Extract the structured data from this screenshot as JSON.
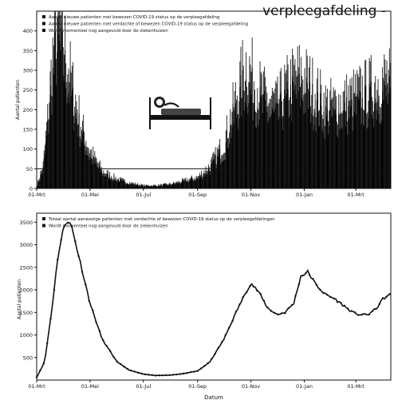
{
  "header": {
    "title": "verpleegafdeling -"
  },
  "chart_data": [
    {
      "type": "bar",
      "ylabel": "Aantal patienten",
      "xlabel": "",
      "ylim": [
        0,
        450
      ],
      "yticks": [
        0,
        50,
        100,
        150,
        200,
        250,
        300,
        350,
        400
      ],
      "xticks": [
        "01-Mrt",
        "01-Mei",
        "01-Jul",
        "01-Sep",
        "01-Nov",
        "01-Jan",
        "01-Mrt"
      ],
      "x_start": "2020-03-01",
      "x_end": "2021-04-10",
      "legend_position": "top-left",
      "legend": [
        "Aantal nieuwe patienten met bewezen COVID-19 status op de verpleegafdeling",
        "Aantal nieuwe patienten met verdachte of bewezen COVID-19 status op de verpleegafdeling",
        "Wordt momenteel nog aangevuld door de ziekenhuizen"
      ],
      "reference_line": {
        "y": 50
      },
      "series": [
        {
          "name": "Aantal nieuwe patienten met verdachte of bewezen COVID-19 status op de verpleegafdeling",
          "anchor_dates": [
            "2020-03-01",
            "2020-03-08",
            "2020-03-13",
            "2020-03-18",
            "2020-03-22",
            "2020-03-26",
            "2020-03-30",
            "2020-04-05",
            "2020-04-12",
            "2020-04-20",
            "2020-04-30",
            "2020-05-15",
            "2020-06-01",
            "2020-06-15",
            "2020-07-01",
            "2020-07-15",
            "2020-08-01",
            "2020-08-15",
            "2020-09-01",
            "2020-09-15",
            "2020-10-01",
            "2020-10-10",
            "2020-10-20",
            "2020-10-25",
            "2020-11-01",
            "2020-11-10",
            "2020-11-20",
            "2020-12-01",
            "2020-12-10",
            "2020-12-20",
            "2020-12-28",
            "2021-01-05",
            "2021-01-15",
            "2021-01-25",
            "2021-02-05",
            "2021-02-15",
            "2021-02-25",
            "2021-03-05",
            "2021-03-15",
            "2021-03-25",
            "2021-04-05",
            "2021-04-10"
          ],
          "anchor_values": [
            10,
            60,
            180,
            320,
            420,
            440,
            400,
            330,
            250,
            170,
            100,
            45,
            25,
            15,
            8,
            8,
            12,
            20,
            30,
            60,
            120,
            200,
            280,
            330,
            300,
            260,
            230,
            220,
            260,
            290,
            300,
            280,
            250,
            220,
            220,
            230,
            240,
            250,
            260,
            280,
            290,
            270
          ]
        },
        {
          "name": "Aantal nieuwe patienten met bewezen COVID-19 status op de verpleegafdeling",
          "note": "approximately 0.8 of the suspected-or-confirmed series"
        }
      ]
    },
    {
      "type": "line",
      "ylabel": "Aantal patienten",
      "xlabel": "Datum",
      "ylim": [
        0,
        3700
      ],
      "yticks": [
        500,
        1000,
        1500,
        2000,
        2500,
        3000,
        3500
      ],
      "xticks": [
        "01-Mrt",
        "01-Mei",
        "01-Jul",
        "01-Sep",
        "01-Nov",
        "01-Jan",
        "01-Mrt"
      ],
      "x_start": "2020-03-01",
      "x_end": "2021-04-10",
      "legend_position": "top-left",
      "legend": [
        "Totaal aantal aanwezige patienten met verdachte of bewezen COVID-19 status op de verpleegafdelingen",
        "Wordt momenteel nog aangevuld door de ziekenhuizen"
      ],
      "series": [
        {
          "name": "Totaal aantal aanwezige patienten met verdachte of bewezen COVID-19 status op de verpleegafdelingen",
          "dates": [
            "2020-03-01",
            "2020-03-10",
            "2020-03-18",
            "2020-03-25",
            "2020-04-01",
            "2020-04-05",
            "2020-04-10",
            "2020-04-20",
            "2020-05-01",
            "2020-05-15",
            "2020-06-01",
            "2020-06-15",
            "2020-07-01",
            "2020-07-15",
            "2020-08-01",
            "2020-08-15",
            "2020-09-01",
            "2020-09-15",
            "2020-10-01",
            "2020-10-15",
            "2020-10-25",
            "2020-11-01",
            "2020-11-10",
            "2020-11-20",
            "2020-12-01",
            "2020-12-10",
            "2020-12-20",
            "2020-12-28",
            "2021-01-05",
            "2021-01-15",
            "2021-01-25",
            "2021-02-05",
            "2021-02-15",
            "2021-02-25",
            "2021-03-05",
            "2021-03-15",
            "2021-03-25",
            "2021-04-01",
            "2021-04-10"
          ],
          "values": [
            60,
            400,
            1500,
            2700,
            3400,
            3550,
            3400,
            2600,
            1700,
            900,
            400,
            220,
            130,
            100,
            110,
            140,
            200,
            400,
            900,
            1500,
            1900,
            2150,
            1950,
            1600,
            1450,
            1500,
            1700,
            2300,
            2400,
            2100,
            1900,
            1800,
            1650,
            1500,
            1450,
            1450,
            1600,
            1800,
            1900
          ]
        }
      ]
    }
  ]
}
